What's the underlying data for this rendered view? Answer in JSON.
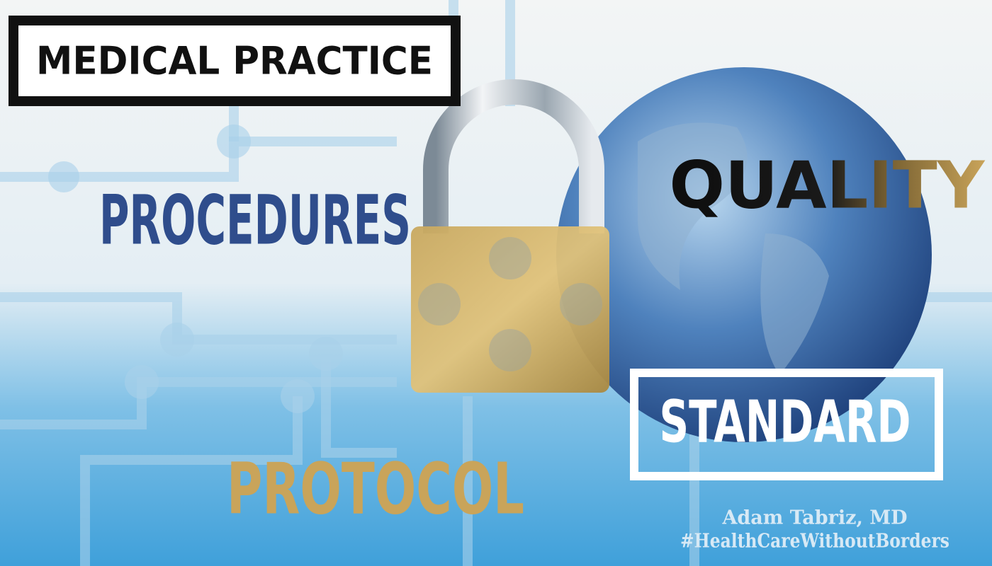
{
  "header": {
    "title": "MEDICAL PRACTICE"
  },
  "words": {
    "procedures": "PROCEDURES",
    "quality": "QUALITY",
    "standard": "STANDARD",
    "protocol": "PROTOCOL"
  },
  "credit": {
    "author": "Adam Tabriz, MD",
    "hashtag": "#HealthCareWithoutBorders"
  }
}
